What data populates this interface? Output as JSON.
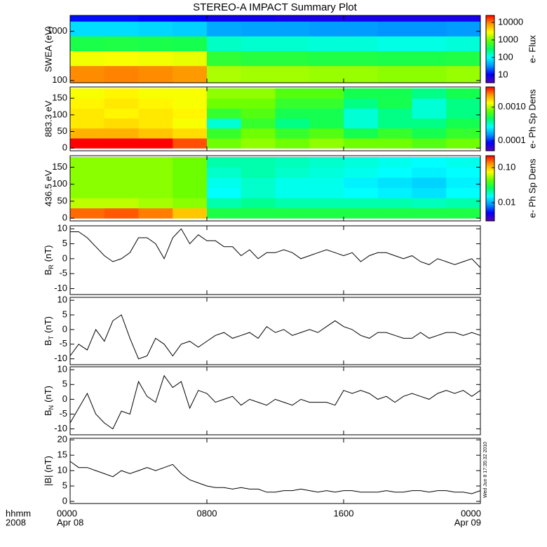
{
  "title": "STEREO-A IMPACT Summary Plot",
  "timestamp": "Wed Jun  8 17:35:32 2010",
  "x_axis": {
    "xlim": [
      0,
      24
    ],
    "xticks": [
      {
        "value": 0,
        "label": "0000"
      },
      {
        "value": 8,
        "label": "0800"
      },
      {
        "value": 16,
        "label": "1600"
      },
      {
        "value": 24,
        "label": "0000"
      }
    ],
    "start_date": "Apr 08",
    "end_date": "Apr 09",
    "time_unit": "hhmm",
    "year": "2008",
    "times": [
      0,
      0.5,
      1,
      1.5,
      2,
      2.5,
      3,
      3.5,
      4,
      4.5,
      5,
      5.5,
      6,
      6.5,
      7,
      7.5,
      8,
      8.5,
      9,
      9.5,
      10,
      10.5,
      11,
      11.5,
      12,
      12.5,
      13,
      13.5,
      14,
      14.5,
      15,
      15.5,
      16,
      16.5,
      17,
      17.5,
      18,
      18.5,
      19,
      19.5,
      20,
      20.5,
      21,
      21.5,
      22,
      22.5,
      23,
      23.5,
      24
    ]
  },
  "colorscale": [
    "#5a00b4",
    "#0000ff",
    "#0096ff",
    "#00ffff",
    "#00ff64",
    "#64ff00",
    "#ffff00",
    "#ff9600",
    "#ff0000"
  ],
  "chart_data": [
    {
      "type": "heatmap",
      "ylabel": "SWEA (eV)",
      "colorbar_label": "e- Flux",
      "log": true,
      "ylim": [
        90,
        2100
      ],
      "yticks": [
        100,
        1000
      ],
      "clim": [
        3.6,
        25000
      ],
      "cticks": [
        10,
        100,
        1000,
        10000
      ],
      "x_edges": [
        0,
        2,
        4,
        6,
        8,
        10,
        12,
        14,
        16,
        18,
        20,
        22,
        24
      ],
      "y_edges": [
        90,
        200,
        400,
        800,
        1600,
        2100
      ],
      "z": [
        [
          9000,
          9500,
          9000,
          8000,
          1500,
          1400,
          1400,
          1300,
          1300,
          1200,
          1200,
          1300
        ],
        [
          2500,
          2600,
          2500,
          2300,
          500,
          450,
          450,
          420,
          420,
          400,
          400,
          420
        ],
        [
          400,
          420,
          400,
          380,
          150,
          140,
          140,
          130,
          130,
          120,
          120,
          130
        ],
        [
          70,
          70,
          65,
          60,
          40,
          38,
          38,
          35,
          35,
          33,
          33,
          35
        ],
        [
          12,
          12,
          11,
          11,
          9,
          9,
          8,
          8,
          8,
          8,
          8,
          8
        ]
      ]
    },
    {
      "type": "heatmap",
      "ylabel": "883.3 eV",
      "colorbar_label": "e- Ph Sp Dens",
      "log": false,
      "ylim": [
        -8,
        184
      ],
      "yticks": [
        0,
        50,
        100,
        150
      ],
      "clim": [
        5e-05,
        0.004
      ],
      "cticks": [
        0.0001,
        {
          "value": 0.001,
          "label": "0.0010"
        }
      ],
      "x_edges": [
        0,
        2,
        4,
        6,
        8,
        10,
        12,
        14,
        16,
        18,
        20,
        22,
        24
      ],
      "y_edges": [
        0,
        30,
        60,
        90,
        120,
        150,
        180
      ],
      "z": [
        [
          0.004,
          0.005,
          0.004,
          0.003,
          0.0008,
          0.0009,
          0.0008,
          0.0009,
          0.0008,
          0.0008,
          0.0007,
          0.0008
        ],
        [
          0.002,
          0.002,
          0.0018,
          0.0016,
          0.0006,
          0.0008,
          0.0006,
          0.0007,
          0.0005,
          0.0006,
          0.0005,
          0.0006
        ],
        [
          0.0015,
          0.0016,
          0.0015,
          0.0013,
          0.0003,
          0.0006,
          0.0004,
          0.0005,
          0.0003,
          0.0004,
          0.0004,
          0.0005
        ],
        [
          0.0015,
          0.0014,
          0.0015,
          0.0014,
          0.0006,
          0.0007,
          0.0005,
          0.0005,
          0.0003,
          0.0004,
          0.0003,
          0.0004
        ],
        [
          0.0014,
          0.0015,
          0.0014,
          0.0013,
          0.0008,
          0.0008,
          0.0006,
          0.0006,
          0.0004,
          0.0005,
          0.0003,
          0.0004
        ],
        [
          0.0013,
          0.0014,
          0.0013,
          0.0013,
          0.0009,
          0.0009,
          0.0007,
          0.0007,
          0.0005,
          0.0005,
          0.0004,
          0.0005
        ]
      ]
    },
    {
      "type": "heatmap",
      "ylabel": "436.5 eV",
      "colorbar_label": "e- Ph Sp Dens",
      "log": false,
      "ylim": [
        -8,
        184
      ],
      "yticks": [
        0,
        50,
        100,
        150
      ],
      "clim": [
        0.003,
        0.22
      ],
      "cticks": [
        0.01,
        {
          "value": 0.1,
          "label": "0.10"
        }
      ],
      "x_edges": [
        0,
        2,
        4,
        6,
        8,
        10,
        12,
        14,
        16,
        18,
        20,
        22,
        24
      ],
      "y_edges": [
        0,
        30,
        60,
        90,
        120,
        150,
        180
      ],
      "z": [
        [
          0.15,
          0.16,
          0.14,
          0.1,
          0.03,
          0.03,
          0.03,
          0.03,
          0.03,
          0.03,
          0.03,
          0.03
        ],
        [
          0.06,
          0.06,
          0.055,
          0.05,
          0.02,
          0.022,
          0.02,
          0.02,
          0.02,
          0.02,
          0.019,
          0.02
        ],
        [
          0.05,
          0.05,
          0.05,
          0.045,
          0.015,
          0.018,
          0.016,
          0.016,
          0.015,
          0.014,
          0.013,
          0.015
        ],
        [
          0.05,
          0.05,
          0.05,
          0.045,
          0.016,
          0.018,
          0.016,
          0.016,
          0.014,
          0.013,
          0.012,
          0.014
        ],
        [
          0.05,
          0.05,
          0.05,
          0.045,
          0.018,
          0.02,
          0.018,
          0.017,
          0.016,
          0.015,
          0.014,
          0.015
        ],
        [
          0.05,
          0.05,
          0.05,
          0.045,
          0.02,
          0.02,
          0.019,
          0.018,
          0.017,
          0.016,
          0.015,
          0.016
        ]
      ]
    },
    {
      "type": "line",
      "ylabel": "B",
      "ylabel_sub": "R",
      "ylabel_unit": "(nT)",
      "color": "#000000",
      "ylim": [
        -12,
        11
      ],
      "yticks": [
        -10,
        -5,
        0,
        5,
        10
      ],
      "values": [
        9,
        9,
        7,
        4,
        1,
        -1,
        0,
        2,
        7,
        7,
        5,
        0,
        7,
        10,
        5,
        8,
        6,
        6,
        4,
        4,
        1,
        3,
        0,
        2,
        2,
        3,
        2,
        0,
        1,
        2,
        3,
        2,
        1,
        2,
        -1,
        1,
        2,
        2,
        1,
        0,
        1,
        -1,
        -2,
        0,
        -1,
        -2,
        -1,
        0,
        -3
      ]
    },
    {
      "type": "line",
      "ylabel": "B",
      "ylabel_sub": "T",
      "ylabel_unit": "(nT)",
      "color": "#000000",
      "ylim": [
        -12,
        11
      ],
      "yticks": [
        -10,
        -5,
        0,
        5,
        10
      ],
      "values": [
        -9,
        -5,
        -7,
        0,
        -4,
        3,
        5,
        -3,
        -10,
        -9,
        -3,
        -5,
        -9,
        -5,
        -4,
        -6,
        -4,
        -2,
        -1,
        -3,
        -2,
        -1,
        -3,
        1,
        -1,
        0,
        -2,
        -1,
        0,
        -1,
        1,
        3,
        1,
        0,
        -2,
        -3,
        -1,
        -1,
        -2,
        -3,
        -3,
        -1,
        -3,
        -2,
        -1,
        -1,
        -2,
        -1,
        -2
      ]
    },
    {
      "type": "line",
      "ylabel": "B",
      "ylabel_sub": "N",
      "ylabel_unit": "(nT)",
      "color": "#000000",
      "ylim": [
        -12,
        11
      ],
      "yticks": [
        -10,
        -5,
        0,
        5,
        10
      ],
      "values": [
        -8,
        -3,
        2,
        -5,
        -8,
        -10,
        -4,
        -5,
        6,
        1,
        -1,
        8,
        4,
        6,
        -3,
        3,
        2,
        -1,
        0,
        1,
        -2,
        0,
        -1,
        -2,
        0,
        -1,
        -2,
        0,
        -1,
        -1,
        -1,
        -2,
        3,
        2,
        3,
        2,
        0,
        1,
        -1,
        1,
        2,
        1,
        0,
        2,
        3,
        2,
        3,
        1,
        3
      ]
    },
    {
      "type": "line",
      "ylabel": "|B| (nT)",
      "color": "#000000",
      "ylim": [
        -0.7,
        20.5
      ],
      "yticks": [
        0,
        5,
        10,
        15,
        20
      ],
      "values": [
        13,
        11,
        11,
        10,
        9,
        8,
        10,
        9,
        10,
        11,
        10,
        11,
        12,
        9,
        7,
        6,
        5,
        4.5,
        4.5,
        4,
        4.5,
        4,
        4,
        3,
        3,
        3.5,
        3.5,
        4,
        3.5,
        3,
        3.5,
        3,
        3.5,
        3.5,
        3,
        3,
        3,
        3.5,
        3,
        3,
        3.5,
        3.5,
        3,
        3.5,
        3.5,
        3,
        3,
        2.5,
        3.5
      ]
    }
  ]
}
